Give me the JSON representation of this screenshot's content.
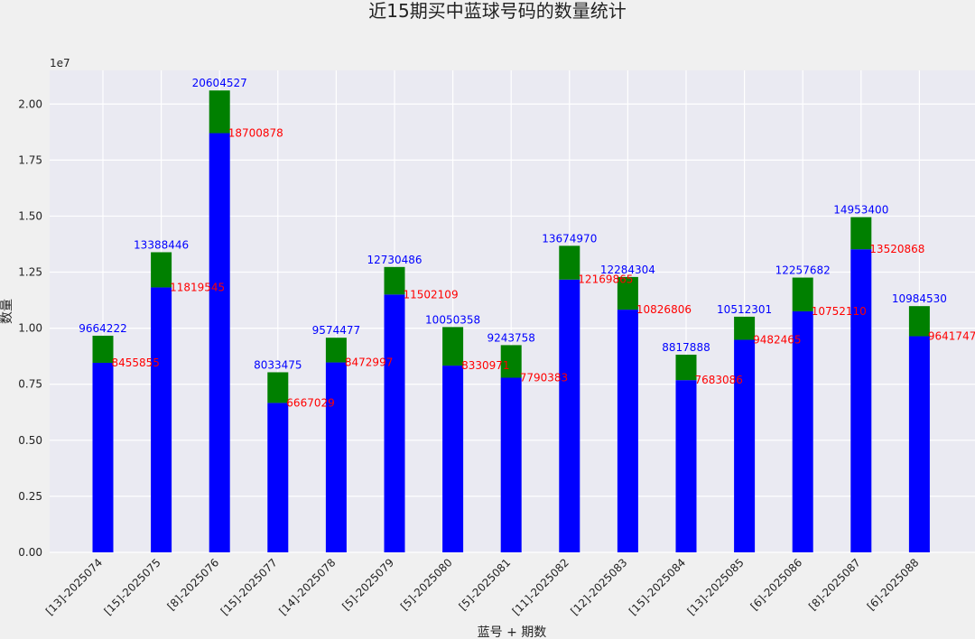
{
  "chart_data": {
    "type": "bar",
    "title": "近15期买中蓝球号码的数量统计",
    "xlabel": "蓝号 + 期数",
    "ylabel": "数量",
    "y_scale_label": "1e7",
    "ylim": [
      0,
      21500000
    ],
    "y_ticks": [
      0,
      2500000,
      5000000,
      7500000,
      10000000,
      12500000,
      15000000,
      17500000,
      20000000
    ],
    "y_tick_labels": [
      "0.00",
      "0.25",
      "0.50",
      "0.75",
      "1.00",
      "1.25",
      "1.50",
      "1.75",
      "2.00"
    ],
    "grid": true,
    "stacked": true,
    "categories": [
      "[13]-2025074",
      "[15]-2025075",
      "[8]-2025076",
      "[15]-2025077",
      "[14]-2025078",
      "[5]-2025079",
      "[5]-2025080",
      "[5]-2025081",
      "[11]-2025082",
      "[12]-2025083",
      "[15]-2025084",
      "[13]-2025085",
      "[6]-2025086",
      "[8]-2025087",
      "[6]-2025088"
    ],
    "series": [
      {
        "color": "#0000ff",
        "values": [
          8455855,
          11819545,
          18700878,
          6667029,
          8472997,
          11502109,
          8330971,
          7790383,
          12169865,
          10826806,
          7683086,
          9482465,
          10752110,
          13520868,
          9641747
        ]
      },
      {
        "color": "#008000",
        "values": [
          1208367,
          1568901,
          1903649,
          1366446,
          1101480,
          1228377,
          1719387,
          1453375,
          1505105,
          1457498,
          1134802,
          1029836,
          1505572,
          1432532,
          1342783
        ]
      }
    ],
    "totals": [
      9664222,
      13388446,
      20604527,
      8033475,
      9574477,
      12730486,
      10050358,
      9243758,
      13674970,
      12284304,
      8817888,
      10512301,
      12257682,
      14953400,
      10984530
    ],
    "inner_labels": [
      "8455855",
      "11819545",
      "18700878",
      "6667029",
      "8472997",
      "11502109",
      "8330971",
      "7790383",
      "12169865",
      "10826806",
      "7683086",
      "9482465",
      "10752110",
      "13520868",
      "9641747"
    ],
    "total_labels": [
      "9664222",
      "13388446",
      "20604527",
      "8033475",
      "9574477",
      "12730486",
      "10050358",
      "9243758",
      "13674970",
      "12284304",
      "8817888",
      "10512301",
      "12257682",
      "14953400",
      "10984530"
    ],
    "colors": {
      "background": "#f0f0f0",
      "plot_background": "#eaeaf2",
      "grid": "#ffffff",
      "total_label": "#0000ff",
      "inner_label": "#ff0000"
    }
  }
}
